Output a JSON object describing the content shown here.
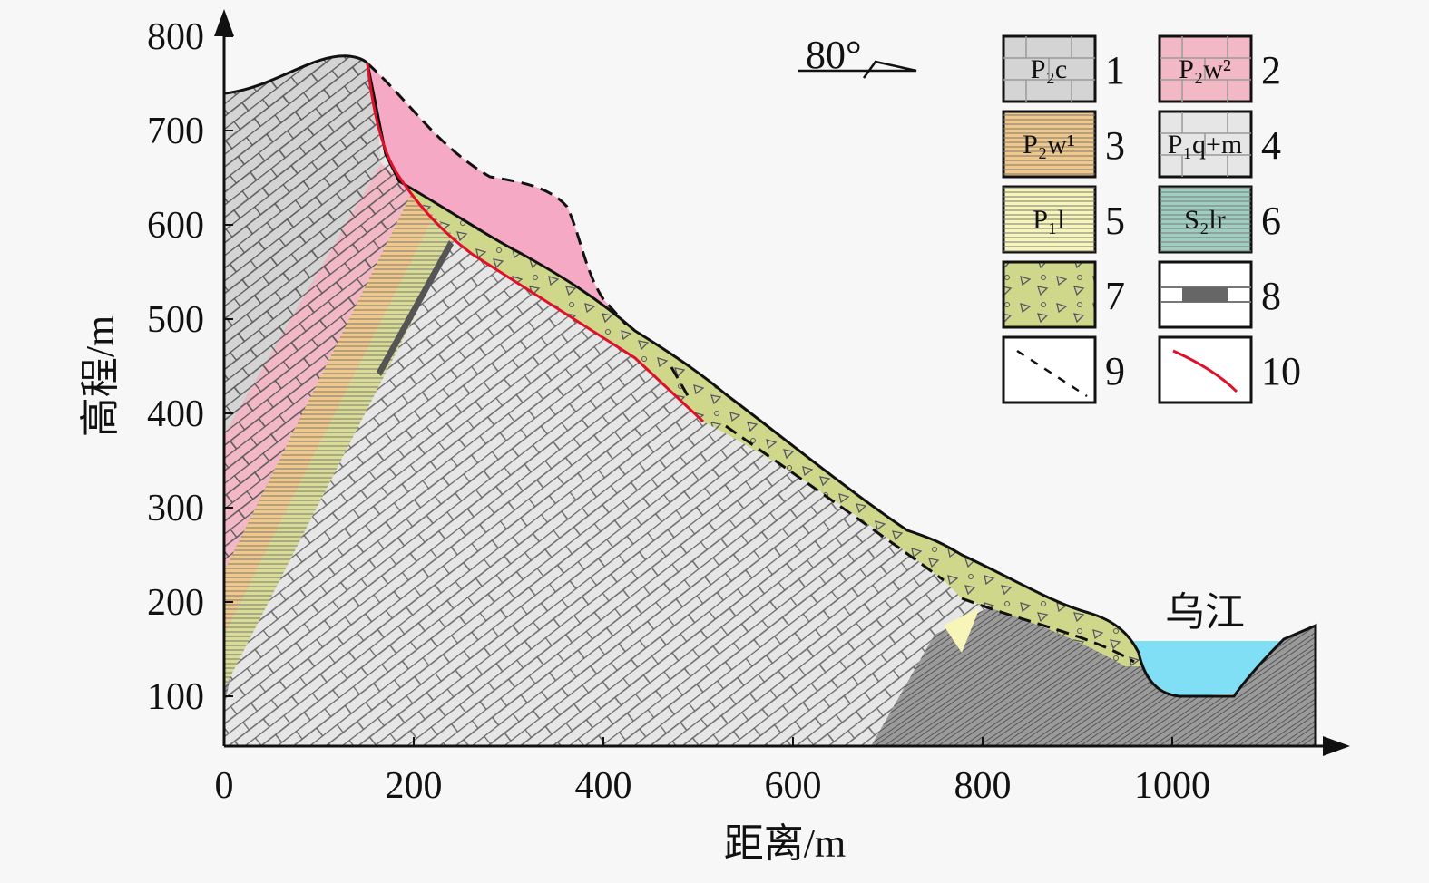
{
  "title": "",
  "x_axis": {
    "label": "距离/m",
    "ticks": [
      "0",
      "200",
      "400",
      "600",
      "800",
      "1000"
    ],
    "tick_values": [
      0,
      200,
      400,
      600,
      800,
      1000
    ]
  },
  "y_axis": {
    "label": "高程/m",
    "ticks": [
      "100",
      "200",
      "300",
      "400",
      "500",
      "600",
      "700",
      "800"
    ],
    "tick_values": [
      100,
      200,
      300,
      400,
      500,
      600,
      700,
      800
    ]
  },
  "dip_label": "80°",
  "river_label": "乌江",
  "legend": [
    {
      "num": "1",
      "text": "P₂c",
      "color": "#d4d4d4"
    },
    {
      "num": "2",
      "text": "P₂w²",
      "color": "#f2b8c6"
    },
    {
      "num": "3",
      "text": "P₂w¹",
      "color": "#f0c88a"
    },
    {
      "num": "4",
      "text": "P₁q+m",
      "color": "#e6e6e6"
    },
    {
      "num": "5",
      "text": "P₁l",
      "color": "#f7f5b8"
    },
    {
      "num": "6",
      "text": "S₂lr",
      "color": "#9fcfc0"
    },
    {
      "num": "7",
      "text": "",
      "color": "#cfd88a"
    },
    {
      "num": "8",
      "text": "",
      "color": "#ffffff"
    },
    {
      "num": "9",
      "text": "",
      "color": "#ffffff"
    },
    {
      "num": "10",
      "text": "",
      "color": "#ffffff"
    }
  ],
  "colors": {
    "landslide": "#f5a9c4",
    "water": "#80def5",
    "slip_surface": "#e0102a"
  }
}
